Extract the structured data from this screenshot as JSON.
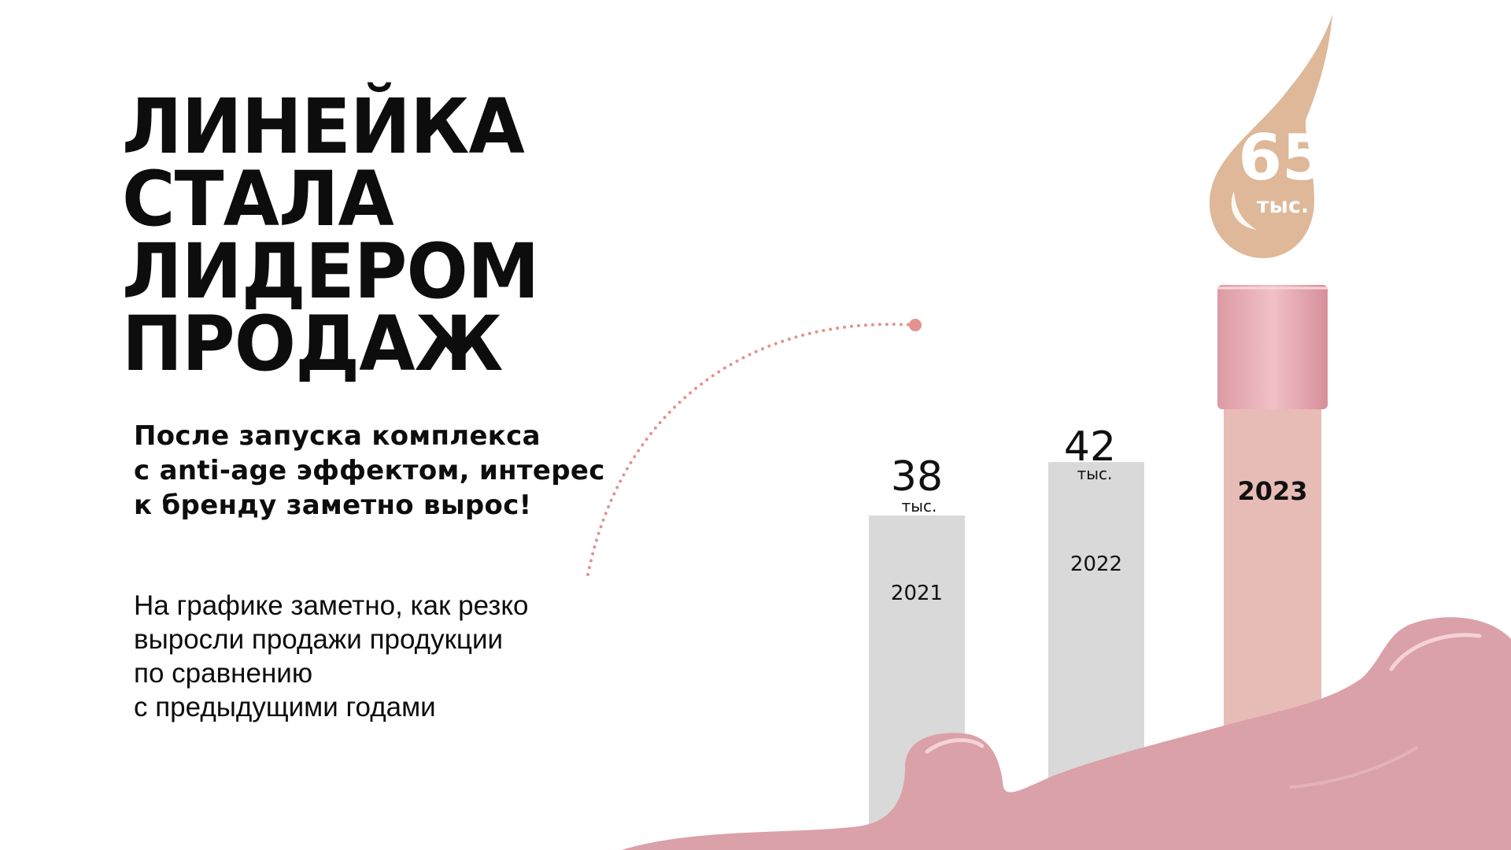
{
  "headline": {
    "lines": [
      "ЛИНЕЙКА",
      "СТАЛА",
      "ЛИДЕРОМ",
      "ПРОДАЖ"
    ]
  },
  "lead": {
    "lines": [
      "После запуска комплекса",
      "с anti-age эффектом, интерес",
      "к бренду заметно вырос!"
    ]
  },
  "body": {
    "lines": [
      "На графике заметно, как резко",
      "выросли продажи продукции",
      "по сравнению",
      "с предыдущими годами"
    ]
  },
  "chart_data": {
    "type": "bar",
    "categories": [
      "2021",
      "2022",
      "2023"
    ],
    "values": [
      38,
      42,
      65
    ],
    "unit": "тыс.",
    "value_labels": [
      "38",
      "42",
      "65"
    ],
    "colors": {
      "bar_gray": "#d9d9d9",
      "bar_highlight": "#e8bcb6",
      "cap": "#e6a9b0",
      "drop": "#deb898",
      "splash": "#dba1a8",
      "dotted_arc": "#e2928f"
    }
  }
}
